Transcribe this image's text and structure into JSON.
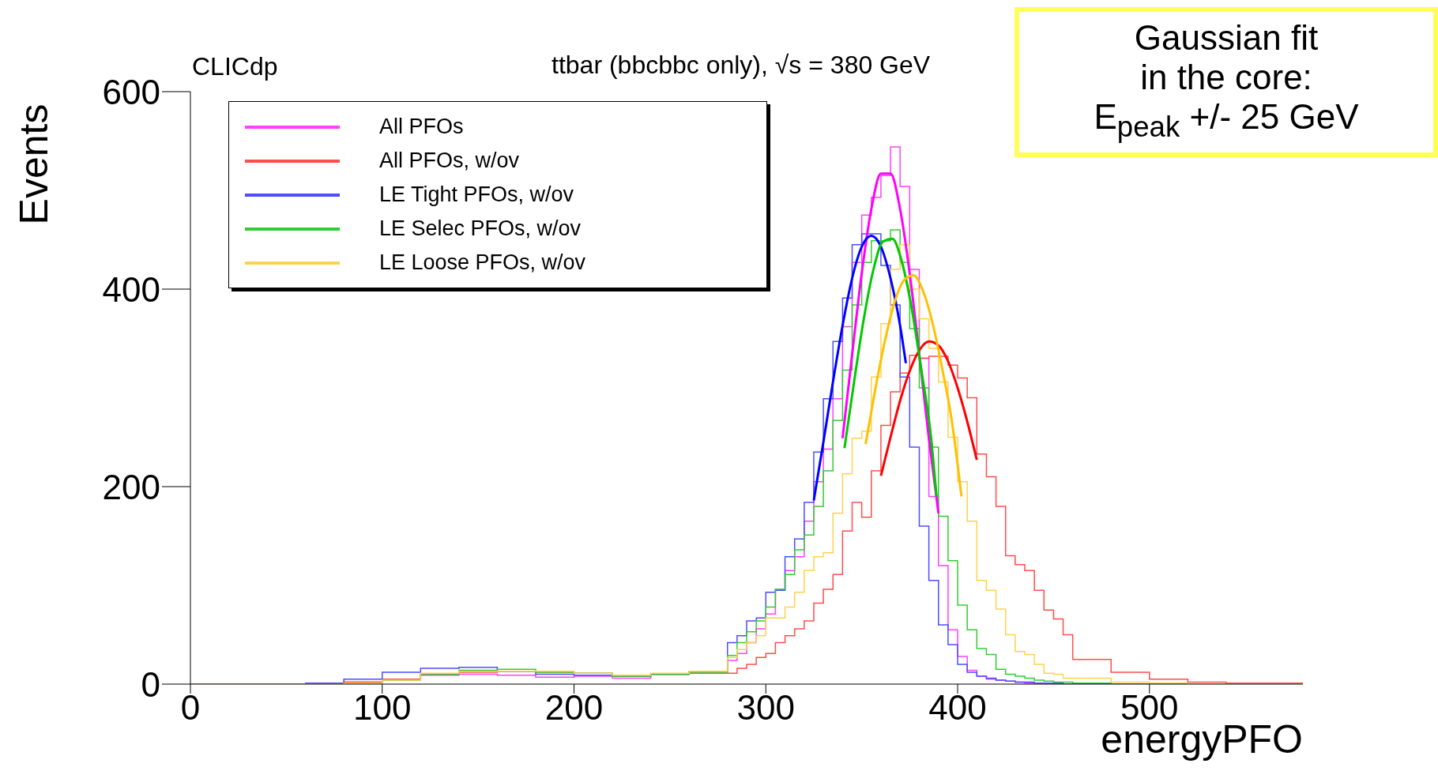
{
  "chart_data": {
    "type": "histogram",
    "subtitle": "ttbar (bbcbbc only), √s = 380 GeV",
    "xlabel": "energyPFO",
    "ylabel": "Events",
    "annotations": [
      "CLICdp",
      "Gaussian fit",
      "in the core:",
      "E$_{peak}$ +/- 25 GeV"
    ],
    "bins": [
      0,
      20,
      40,
      60,
      80,
      100,
      120,
      140,
      160,
      180,
      200,
      220,
      240,
      260,
      280,
      285,
      290,
      295,
      300,
      305,
      310,
      315,
      320,
      325,
      330,
      335,
      340,
      345,
      350,
      355,
      360,
      365,
      370,
      375,
      380,
      385,
      390,
      395,
      400,
      405,
      410,
      415,
      420,
      425,
      430,
      435,
      440,
      445,
      450,
      455,
      460,
      480,
      500,
      520,
      540,
      560,
      580
    ],
    "series": [
      {
        "name": "All PFOs",
        "color": "#ff40ff",
        "values": [
          0,
          0,
          0,
          0,
          2,
          4,
          9,
          10,
          9,
          7,
          8,
          6,
          10,
          11,
          24,
          31,
          42,
          56,
          71,
          96,
          115,
          129,
          165,
          205,
          238,
          289,
          362,
          427,
          475,
          493,
          515,
          544,
          504,
          420,
          330,
          190,
          120,
          55,
          28,
          14,
          8,
          5,
          4,
          3,
          2,
          1,
          1,
          1,
          0,
          0,
          0,
          0,
          0,
          0,
          0,
          0
        ]
      },
      {
        "name": "All PFOs, w/ov",
        "color": "#ff4d4d",
        "values": [
          0,
          0,
          0,
          0,
          2,
          5,
          10,
          12,
          13,
          12,
          11,
          8,
          10,
          11,
          11,
          16,
          20,
          27,
          31,
          42,
          49,
          56,
          64,
          82,
          96,
          111,
          155,
          184,
          169,
          216,
          262,
          296,
          315,
          333,
          330,
          332,
          332,
          323,
          310,
          290,
          233,
          210,
          180,
          130,
          121,
          115,
          95,
          75,
          66,
          50,
          25,
          12,
          5,
          2,
          1,
          1
        ]
      },
      {
        "name": "LE Tight PFOs, w/ov",
        "color": "#4d4dff",
        "values": [
          0,
          0,
          0,
          1,
          5,
          12,
          16,
          17,
          13,
          10,
          9,
          8,
          10,
          13,
          42,
          49,
          64,
          67,
          93,
          95,
          129,
          147,
          184,
          235,
          289,
          347,
          391,
          445,
          456,
          456,
          424,
          384,
          311,
          240,
          160,
          105,
          60,
          40,
          20,
          12,
          8,
          6,
          4,
          3,
          2,
          2,
          1,
          1,
          1,
          0,
          0,
          0,
          0,
          0,
          0,
          0
        ]
      },
      {
        "name": "LE Selec PFOs, w/ov",
        "color": "#33cc33",
        "values": [
          0,
          0,
          0,
          0,
          1,
          4,
          10,
          14,
          15,
          12,
          11,
          8,
          10,
          12,
          29,
          42,
          53,
          64,
          78,
          96,
          111,
          136,
          151,
          180,
          216,
          267,
          318,
          384,
          427,
          449,
          449,
          460,
          427,
          360,
          300,
          240,
          170,
          125,
          80,
          55,
          36,
          30,
          15,
          10,
          8,
          6,
          4,
          3,
          2,
          2,
          1,
          0,
          0,
          0,
          0,
          0
        ]
      },
      {
        "name": "LE Loose PFOs, w/ov",
        "color": "#ffd24d",
        "values": [
          0,
          0,
          0,
          0,
          1,
          4,
          11,
          13,
          13,
          13,
          11,
          9,
          11,
          13,
          27,
          35,
          42,
          49,
          67,
          67,
          78,
          93,
          115,
          129,
          133,
          173,
          213,
          249,
          256,
          311,
          365,
          420,
          445,
          400,
          370,
          340,
          306,
          250,
          205,
          165,
          105,
          95,
          76,
          50,
          33,
          30,
          20,
          11,
          10,
          6,
          6,
          2,
          1,
          0,
          0,
          0
        ]
      },
      {
        "type": "line",
        "color": "#ff00ff",
        "x": [
          340,
          345,
          350,
          355,
          360,
          365,
          370,
          375,
          380,
          385,
          390
        ],
        "values": [
          249,
          334,
          416,
          481,
          517,
          517,
          481,
          416,
          334,
          249,
          173
        ]
      },
      {
        "type": "line",
        "color": "#ff0000",
        "x": [
          360,
          365,
          370,
          375,
          380,
          385,
          390,
          395,
          400,
          405,
          410
        ],
        "values": [
          211,
          250,
          287,
          317,
          338,
          347,
          343,
          327,
          300,
          266,
          227
        ]
      },
      {
        "type": "line",
        "color": "#0000ff",
        "x": [
          325,
          330,
          335,
          340,
          345,
          350,
          355,
          360,
          365,
          370,
          373
        ],
        "values": [
          186,
          245,
          306,
          363,
          411,
          443,
          454,
          443,
          411,
          363,
          325
        ]
      },
      {
        "type": "line",
        "color": "#00c800",
        "x": [
          341,
          346,
          351,
          356,
          361,
          366,
          371,
          376,
          381,
          386,
          389
        ],
        "values": [
          239,
          306,
          369,
          419,
          448,
          451,
          427,
          381,
          319,
          252,
          190
        ]
      },
      {
        "type": "line",
        "color": "#ffc000",
        "x": [
          352,
          357,
          362,
          367,
          372,
          377,
          382,
          387,
          392,
          397,
          402
        ],
        "values": [
          243,
          298,
          347,
          386,
          409,
          414,
          398,
          365,
          319,
          266,
          190
        ]
      }
    ],
    "xlim": [
      0,
      580
    ],
    "xticks": [
      0,
      100,
      200,
      300,
      400,
      500
    ],
    "ylim": [
      0,
      600
    ],
    "yticks": [
      0,
      200,
      400,
      600
    ],
    "grid": false,
    "legend": "top left"
  }
}
